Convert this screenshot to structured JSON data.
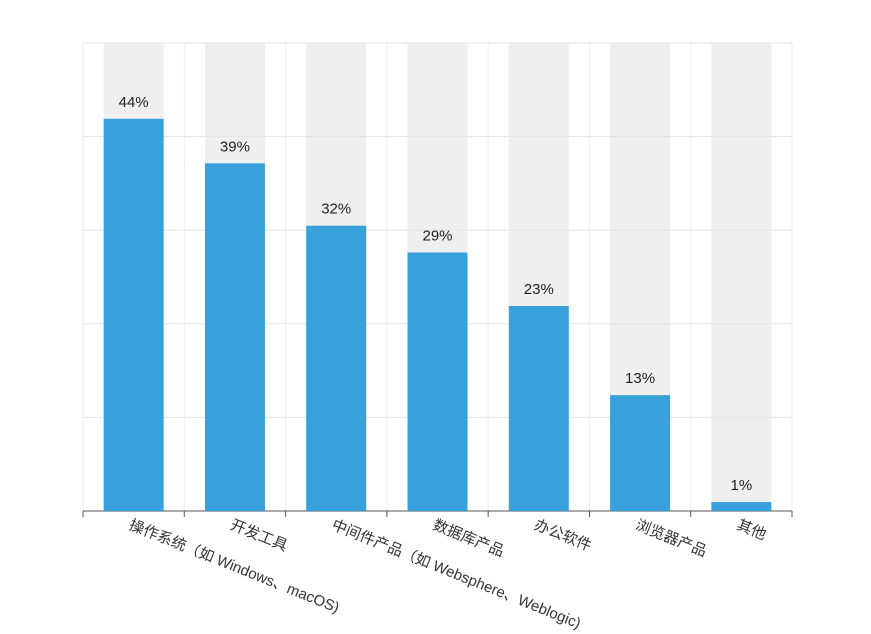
{
  "chart_data": {
    "type": "bar",
    "categories": [
      "操作系统（如 Windows、macOS)",
      "开发工具",
      "中间件产品（如 Websphere、Weblogic)",
      "数据库产品",
      "办公软件",
      "浏览器产品",
      "其他"
    ],
    "values": [
      44,
      39,
      32,
      29,
      23,
      13,
      1
    ],
    "value_labels": [
      "44%",
      "39%",
      "32%",
      "29%",
      "23%",
      "13%",
      "1%"
    ],
    "color": "#38a1db",
    "band_color": "#efefef",
    "ylim": [
      0,
      52.5
    ],
    "yticks": [
      0,
      10.5,
      21,
      31.5,
      42,
      52.5
    ],
    "grid": true
  }
}
